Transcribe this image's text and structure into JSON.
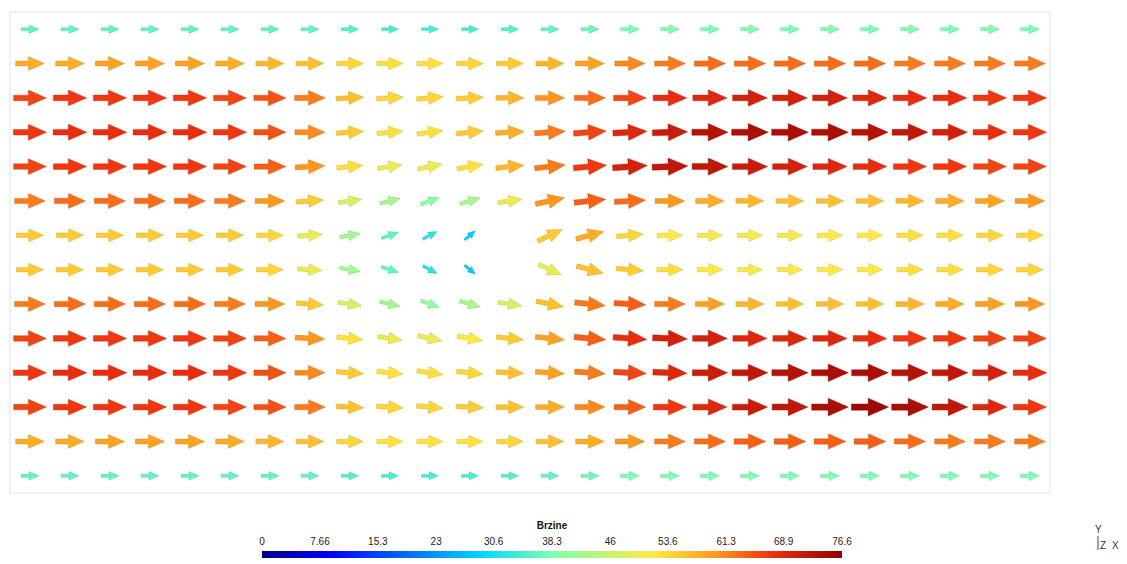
{
  "chart_data": {
    "type": "vector_field",
    "tick_labels": false,
    "xlim": [
      0,
      26
    ],
    "ylim": [
      0,
      14
    ],
    "x": [
      0.5,
      1.5,
      2.5,
      3.5,
      4.5,
      5.5,
      6.5,
      7.5,
      8.5,
      9.5,
      10.5,
      11.5,
      12.5,
      13.5,
      14.5,
      15.5,
      16.5,
      17.5,
      18.5,
      19.5,
      20.5,
      21.5,
      22.5,
      23.5,
      24.5,
      25.5
    ],
    "y": [
      13.5,
      12.5,
      11.5,
      10.5,
      9.5,
      8.5,
      7.5,
      6.5,
      5.5,
      4.5,
      3.5,
      2.5,
      1.5,
      0.5
    ],
    "speed": [
      [
        36,
        36,
        36,
        36,
        36,
        36,
        36,
        36,
        35,
        34,
        34,
        34,
        35,
        36,
        37,
        38,
        38,
        38,
        38,
        38,
        38,
        38,
        38,
        38,
        38,
        38
      ],
      [
        58,
        58,
        59,
        59,
        59,
        58,
        57,
        56,
        54,
        53,
        53,
        54,
        55,
        57,
        59,
        61,
        62,
        63,
        63,
        63,
        63,
        63,
        62,
        62,
        62,
        62
      ],
      [
        66,
        67,
        67,
        67,
        67,
        66,
        65,
        62,
        56,
        54,
        54,
        55,
        57,
        60,
        63,
        66,
        68,
        69,
        70,
        70,
        70,
        69,
        68,
        68,
        67,
        67
      ],
      [
        67,
        68,
        68,
        68,
        68,
        67,
        65,
        61,
        55,
        53,
        53,
        55,
        58,
        62,
        66,
        69,
        71,
        73,
        74,
        74,
        74,
        73,
        72,
        70,
        68,
        67
      ],
      [
        66,
        67,
        67,
        67,
        67,
        66,
        64,
        60,
        53,
        50,
        50,
        53,
        57,
        62,
        67,
        70,
        72,
        72,
        71,
        70,
        69,
        68,
        67,
        67,
        66,
        66
      ],
      [
        62,
        63,
        63,
        63,
        63,
        62,
        60,
        55,
        48,
        42,
        40,
        42,
        50,
        60,
        64,
        63,
        60,
        58,
        57,
        56,
        56,
        56,
        57,
        58,
        59,
        60
      ],
      [
        55,
        55,
        55,
        55,
        55,
        55,
        54,
        50,
        42,
        36,
        32,
        28,
        null,
        55,
        58,
        54,
        52,
        51,
        51,
        51,
        52,
        52,
        53,
        53,
        54,
        54
      ],
      [
        55,
        55,
        55,
        55,
        55,
        55,
        54,
        50,
        42,
        36,
        32,
        28,
        null,
        50,
        56,
        55,
        53,
        52,
        51,
        51,
        52,
        52,
        53,
        53,
        54,
        54
      ],
      [
        62,
        63,
        63,
        63,
        63,
        62,
        60,
        55,
        48,
        42,
        40,
        43,
        48,
        56,
        62,
        64,
        62,
        59,
        57,
        56,
        56,
        56,
        57,
        58,
        59,
        60
      ],
      [
        66,
        67,
        67,
        67,
        67,
        66,
        64,
        60,
        53,
        50,
        50,
        52,
        55,
        59,
        64,
        68,
        70,
        70,
        69,
        69,
        69,
        68,
        67,
        67,
        66,
        66
      ],
      [
        67,
        68,
        68,
        68,
        68,
        67,
        65,
        61,
        55,
        53,
        53,
        54,
        56,
        59,
        62,
        66,
        69,
        71,
        72,
        73,
        74,
        74,
        73,
        72,
        70,
        68
      ],
      [
        66,
        67,
        67,
        67,
        67,
        66,
        65,
        62,
        56,
        54,
        54,
        55,
        56,
        58,
        61,
        64,
        67,
        69,
        71,
        72,
        74,
        75,
        74,
        72,
        69,
        67
      ],
      [
        58,
        58,
        59,
        59,
        59,
        58,
        57,
        56,
        54,
        53,
        53,
        53,
        54,
        56,
        58,
        60,
        62,
        63,
        64,
        64,
        64,
        64,
        63,
        62,
        62,
        62
      ],
      [
        36,
        36,
        36,
        36,
        36,
        36,
        36,
        36,
        35,
        34,
        34,
        34,
        35,
        36,
        37,
        38,
        38,
        38,
        38,
        38,
        38,
        38,
        38,
        38,
        38,
        38
      ]
    ],
    "angle": [
      [
        0,
        0,
        0,
        0,
        0,
        0,
        0,
        0,
        0,
        0,
        0,
        0,
        0,
        0,
        0,
        0,
        0,
        0,
        0,
        0,
        0,
        0,
        0,
        0,
        0,
        0
      ],
      [
        0,
        0,
        0,
        0,
        0,
        0,
        0,
        0,
        0,
        0,
        0,
        0,
        0,
        0,
        0,
        0,
        0,
        0,
        0,
        0,
        0,
        0,
        0,
        0,
        0,
        0
      ],
      [
        0,
        0,
        0,
        0,
        0,
        0,
        0,
        0,
        3,
        4,
        5,
        3,
        0,
        0,
        0,
        0,
        0,
        0,
        0,
        0,
        0,
        0,
        0,
        0,
        0,
        0
      ],
      [
        0,
        0,
        0,
        0,
        0,
        0,
        0,
        0,
        4,
        6,
        8,
        6,
        3,
        4,
        4,
        3,
        2,
        0,
        0,
        0,
        0,
        0,
        0,
        0,
        0,
        0
      ],
      [
        0,
        0,
        0,
        0,
        0,
        0,
        0,
        3,
        6,
        9,
        12,
        10,
        6,
        6,
        5,
        4,
        2,
        0,
        0,
        0,
        0,
        0,
        0,
        0,
        0,
        0
      ],
      [
        0,
        0,
        0,
        0,
        0,
        0,
        0,
        4,
        8,
        14,
        20,
        16,
        8,
        12,
        6,
        3,
        0,
        0,
        0,
        0,
        0,
        0,
        0,
        0,
        0,
        0
      ],
      [
        0,
        0,
        0,
        0,
        0,
        0,
        0,
        4,
        10,
        18,
        28,
        40,
        null,
        25,
        15,
        5,
        0,
        0,
        0,
        0,
        0,
        0,
        0,
        0,
        0,
        0
      ],
      [
        0,
        0,
        0,
        0,
        0,
        0,
        0,
        -4,
        -10,
        -18,
        -28,
        -40,
        null,
        -25,
        -15,
        -5,
        0,
        0,
        0,
        0,
        0,
        0,
        0,
        0,
        0,
        0
      ],
      [
        0,
        0,
        0,
        0,
        0,
        0,
        0,
        -4,
        -8,
        -14,
        -20,
        -16,
        -8,
        -12,
        -6,
        -3,
        0,
        0,
        0,
        0,
        0,
        0,
        0,
        0,
        0,
        0
      ],
      [
        0,
        0,
        0,
        0,
        0,
        0,
        0,
        -3,
        -6,
        -9,
        -12,
        -10,
        -6,
        -6,
        -5,
        -4,
        -2,
        0,
        0,
        0,
        0,
        0,
        0,
        0,
        0,
        0
      ],
      [
        0,
        0,
        0,
        0,
        0,
        0,
        0,
        0,
        -4,
        -6,
        -8,
        -6,
        -3,
        -4,
        -4,
        -3,
        -2,
        0,
        0,
        0,
        0,
        0,
        0,
        0,
        0,
        0
      ],
      [
        0,
        0,
        0,
        0,
        0,
        0,
        0,
        0,
        -3,
        -4,
        -5,
        -3,
        0,
        0,
        0,
        0,
        0,
        0,
        0,
        0,
        0,
        0,
        0,
        0,
        0,
        0
      ],
      [
        0,
        0,
        0,
        0,
        0,
        0,
        0,
        0,
        0,
        0,
        0,
        0,
        0,
        0,
        0,
        0,
        0,
        0,
        0,
        0,
        0,
        0,
        0,
        0,
        0,
        0
      ],
      [
        0,
        0,
        0,
        0,
        0,
        0,
        0,
        0,
        0,
        0,
        0,
        0,
        0,
        0,
        0,
        0,
        0,
        0,
        0,
        0,
        0,
        0,
        0,
        0,
        0,
        0
      ]
    ],
    "colorbar": {
      "title": "Brzine",
      "range": [
        0,
        76.6
      ],
      "ticks": [
        0,
        7.66,
        15.3,
        23,
        30.6,
        38.3,
        46,
        53.6,
        61.3,
        68.9,
        76.6
      ]
    },
    "annotations": [
      "Y",
      "Z",
      "X"
    ]
  }
}
